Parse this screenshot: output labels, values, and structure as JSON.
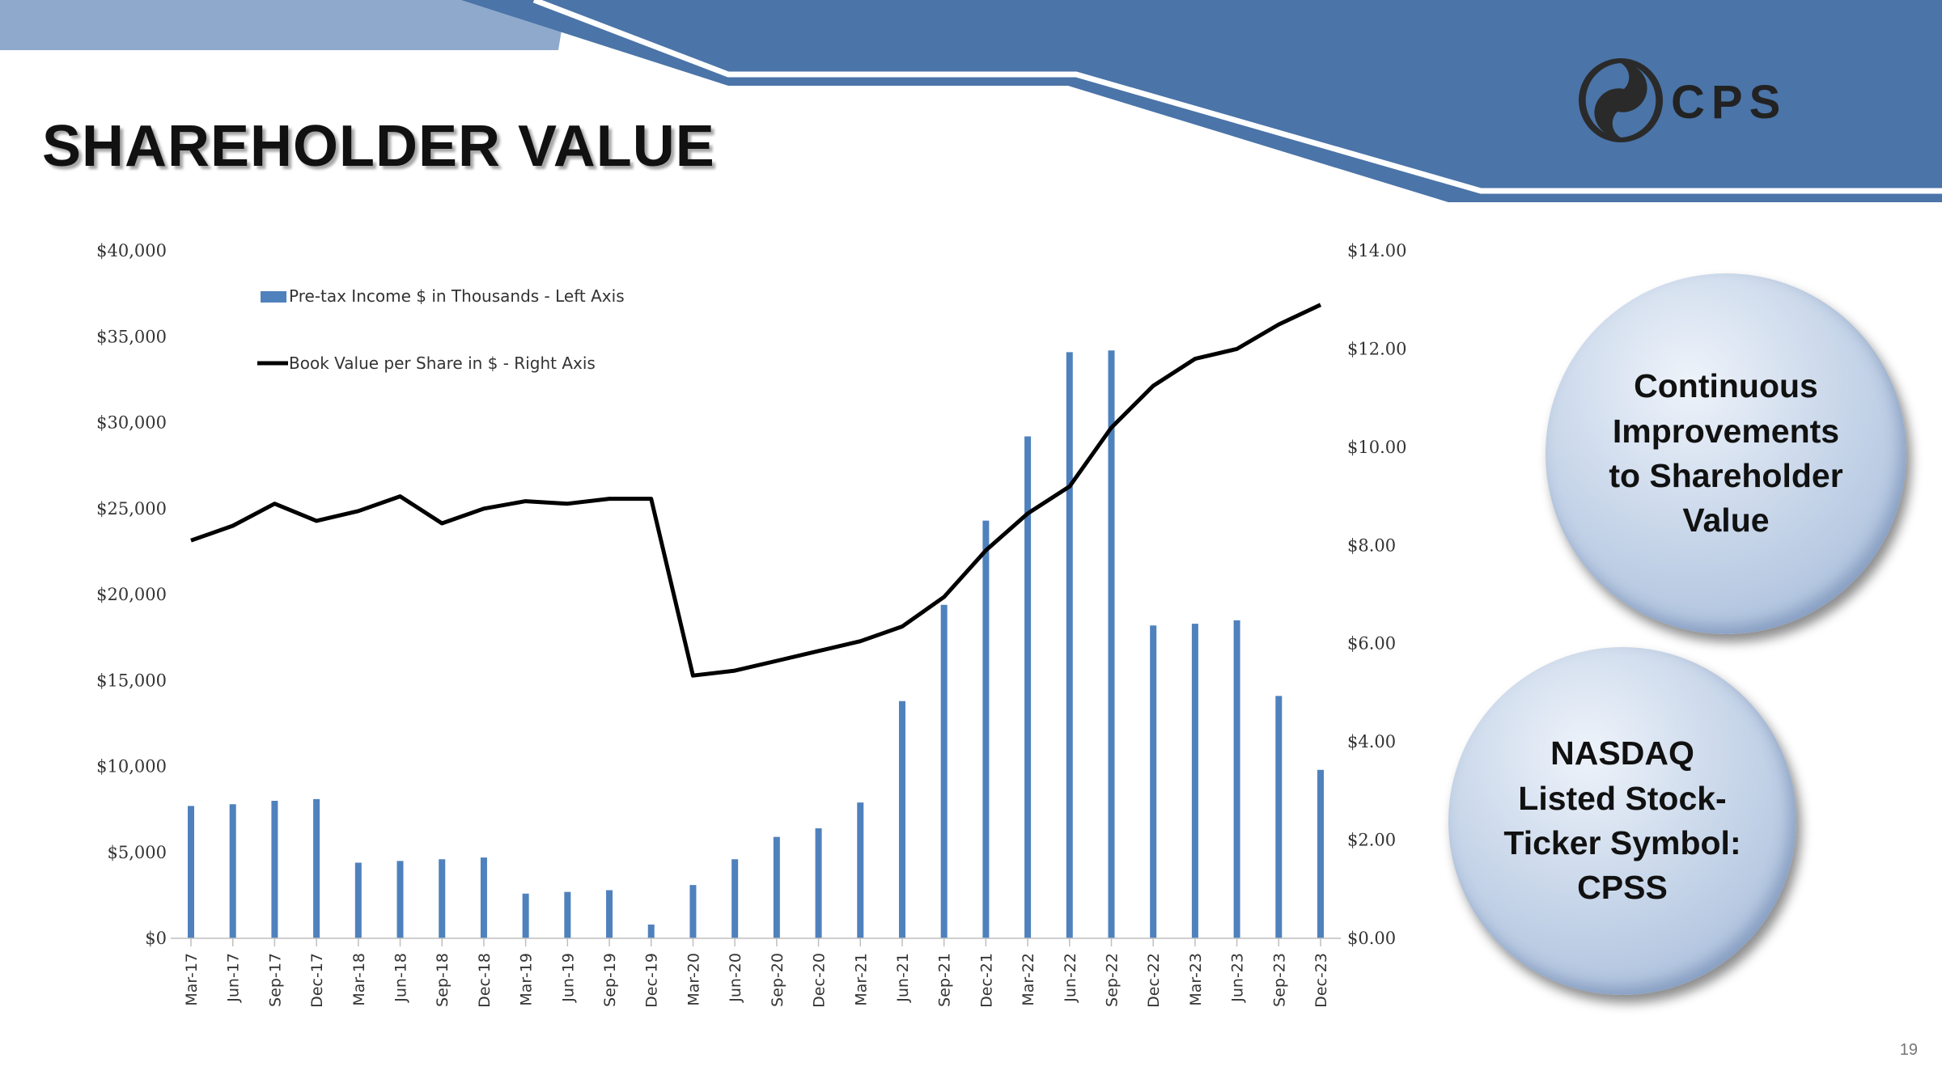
{
  "slide": {
    "title": "SHAREHOLDER VALUE",
    "page_number": "19",
    "logo": {
      "text": "CPS",
      "icon": "cps-swirl-icon"
    },
    "callouts": [
      {
        "lines": [
          "Continuous",
          "Improvements",
          "to Shareholder",
          "Value"
        ]
      },
      {
        "lines": [
          "NASDAQ",
          "Listed Stock-",
          "Ticker Symbol:",
          "CPSS"
        ]
      }
    ],
    "colors": {
      "banner": "#4b74a8",
      "banner_light": "#8fa9cc",
      "bar": "#4f81bd",
      "line": "#000000"
    }
  },
  "chart_data": {
    "type": "bar",
    "categories": [
      "Mar-17",
      "Jun-17",
      "Sep-17",
      "Dec-17",
      "Mar-18",
      "Jun-18",
      "Sep-18",
      "Dec-18",
      "Mar-19",
      "Jun-19",
      "Sep-19",
      "Dec-19",
      "Mar-20",
      "Jun-20",
      "Sep-20",
      "Dec-20",
      "Mar-21",
      "Jun-21",
      "Sep-21",
      "Dec-21",
      "Mar-22",
      "Jun-22",
      "Sep-22",
      "Dec-22",
      "Mar-23",
      "Jun-23",
      "Sep-23",
      "Dec-23"
    ],
    "series": [
      {
        "name": "Pre-tax Income  $ in Thousands - Left Axis",
        "type": "bar",
        "axis": "left",
        "values": [
          7700,
          7800,
          8000,
          8100,
          4400,
          4500,
          4600,
          4700,
          2600,
          2700,
          2800,
          800,
          3100,
          4600,
          5900,
          6400,
          7900,
          13800,
          19400,
          24300,
          29200,
          34100,
          34200,
          18200,
          18300,
          18500,
          14100,
          9800
        ]
      },
      {
        "name": "Book Value per Share in $ - Right Axis",
        "type": "line",
        "axis": "right",
        "values": [
          8.1,
          8.4,
          8.85,
          8.5,
          8.7,
          9.0,
          8.45,
          8.75,
          8.9,
          8.85,
          8.95,
          8.95,
          5.35,
          5.45,
          5.65,
          5.85,
          6.05,
          6.35,
          6.95,
          7.9,
          8.65,
          9.2,
          10.4,
          11.25,
          11.8,
          12.0,
          12.5,
          12.9
        ]
      }
    ],
    "left_axis": {
      "ticks": [
        "$0",
        "$5,000",
        "$10,000",
        "$15,000",
        "$20,000",
        "$25,000",
        "$30,000",
        "$35,000",
        "$40,000"
      ],
      "ylim": [
        0,
        40000
      ]
    },
    "right_axis": {
      "ticks": [
        "$0.00",
        "$2.00",
        "$4.00",
        "$6.00",
        "$8.00",
        "$10.00",
        "$12.00",
        "$14.00"
      ],
      "ylim": [
        0,
        14
      ]
    },
    "legend": "top-left",
    "grid": false
  }
}
